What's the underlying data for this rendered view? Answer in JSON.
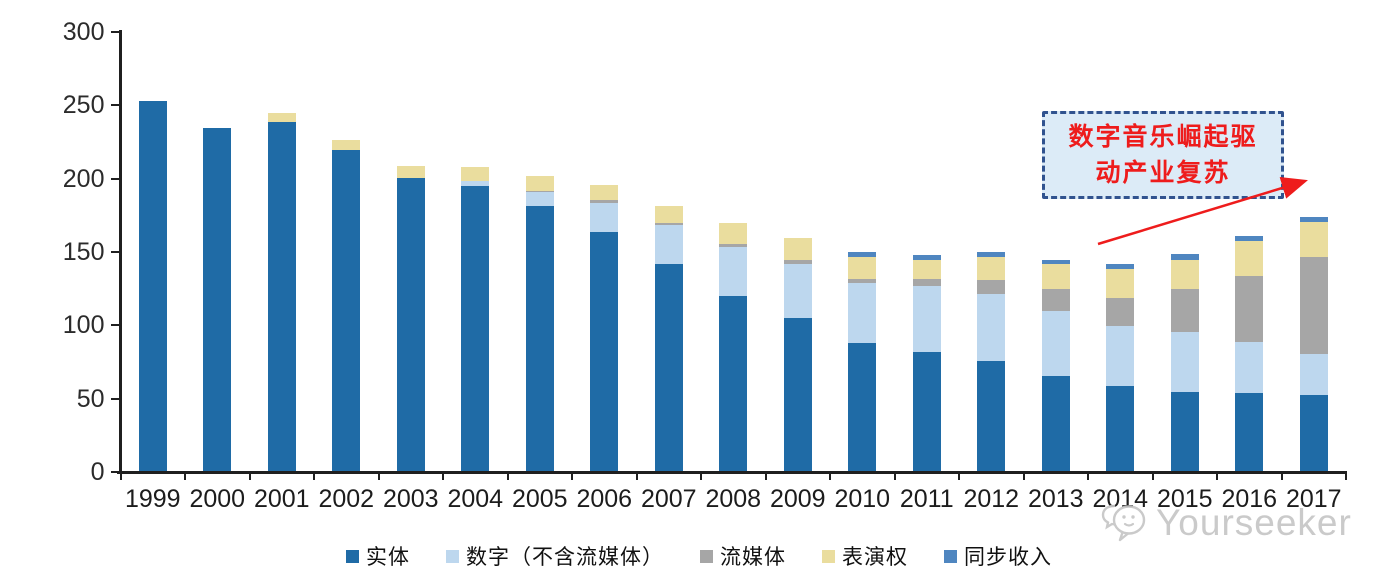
{
  "chart_data": {
    "type": "bar",
    "stacked": true,
    "title": "",
    "xlabel": "",
    "ylabel": "",
    "ylim": [
      0,
      300
    ],
    "y_ticks": [
      0,
      50,
      100,
      150,
      200,
      250,
      300
    ],
    "grid": false,
    "legend_position": "bottom",
    "categories": [
      "1999",
      "2000",
      "2001",
      "2002",
      "2003",
      "2004",
      "2005",
      "2006",
      "2007",
      "2008",
      "2009",
      "2010",
      "2011",
      "2012",
      "2013",
      "2014",
      "2015",
      "2016",
      "2017"
    ],
    "series": [
      {
        "key": "physical",
        "name": "实体",
        "color": "#1f6ba6",
        "values": [
          252,
          234,
          238,
          219,
          200,
          194,
          181,
          163,
          141,
          119,
          104,
          87,
          81,
          75,
          65,
          58,
          54,
          53,
          52
        ]
      },
      {
        "key": "digital-ex-stream",
        "name": "数字（不含流媒体）",
        "color": "#bdd7ee",
        "values": [
          0,
          0,
          0,
          0,
          0,
          4,
          9,
          20,
          27,
          34,
          37,
          41,
          45,
          46,
          44,
          41,
          41,
          35,
          28
        ]
      },
      {
        "key": "streaming",
        "name": "流媒体",
        "color": "#a6a6a6",
        "values": [
          0,
          0,
          0,
          0,
          0,
          0,
          1,
          2,
          1,
          2,
          3,
          3,
          5,
          9,
          15,
          19,
          29,
          45,
          66
        ]
      },
      {
        "key": "performance-rights",
        "name": "表演权",
        "color": "#eadd9e",
        "values": [
          0,
          0,
          6,
          7,
          8,
          9,
          10,
          10,
          12,
          14,
          15,
          15,
          13,
          16,
          17,
          20,
          20,
          24,
          24
        ]
      },
      {
        "key": "sync-revenue",
        "name": "同步收入",
        "color": "#4f86c0",
        "values": [
          0,
          0,
          0,
          0,
          0,
          0,
          0,
          0,
          0,
          0,
          0,
          3,
          3,
          3,
          3,
          3,
          4,
          3,
          3
        ]
      }
    ]
  },
  "annotation": {
    "line1": "数字音乐崛起驱",
    "line2": "动产业复苏",
    "text_color": "#ee1c1c",
    "border_color": "#31538f",
    "fill_color": "#dcebf7",
    "arrow_color": "#ee1c1c"
  },
  "watermark": {
    "text": "Yourseeker",
    "icon": "chat-face-logo",
    "color": "#c6c6c6"
  }
}
